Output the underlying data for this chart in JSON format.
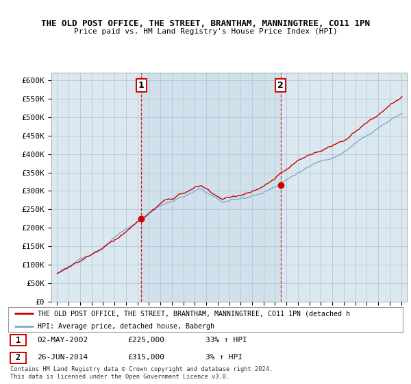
{
  "title_line1": "THE OLD POST OFFICE, THE STREET, BRANTHAM, MANNINGTREE, CO11 1PN",
  "title_line2": "Price paid vs. HM Land Registry's House Price Index (HPI)",
  "ylim": [
    0,
    620000
  ],
  "yticks": [
    0,
    50000,
    100000,
    150000,
    200000,
    250000,
    300000,
    350000,
    400000,
    450000,
    500000,
    550000,
    600000
  ],
  "ytick_labels": [
    "£0",
    "£50K",
    "£100K",
    "£150K",
    "£200K",
    "£250K",
    "£300K",
    "£350K",
    "£400K",
    "£450K",
    "£500K",
    "£550K",
    "£600K"
  ],
  "sale1_date": 2002.33,
  "sale1_price": 225000,
  "sale2_date": 2014.48,
  "sale2_price": 315000,
  "sale_color": "#cc0000",
  "hpi_color": "#7aadcf",
  "fill_color": "#d8e8f0",
  "legend_sale_text": "THE OLD POST OFFICE, THE STREET, BRANTHAM, MANNINGTREE, CO11 1PN (detached h",
  "legend_hpi_text": "HPI: Average price, detached house, Babergh",
  "table_row1": [
    "1",
    "02-MAY-2002",
    "£225,000",
    "33% ↑ HPI"
  ],
  "table_row2": [
    "2",
    "26-JUN-2014",
    "£315,000",
    "3% ↑ HPI"
  ],
  "footnote1": "Contains HM Land Registry data © Crown copyright and database right 2024.",
  "footnote2": "This data is licensed under the Open Government Licence v3.0.",
  "plot_bg": "#dce8f0",
  "grid_color": "#b0c8d8"
}
